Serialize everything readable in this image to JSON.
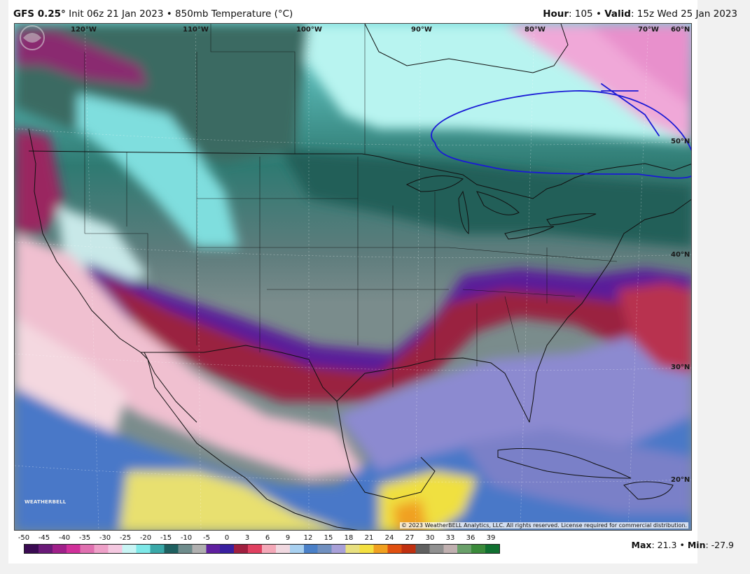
{
  "header": {
    "model": "GFS 0.25",
    "model_deg": "°",
    "init": "Init 06z 21 Jan 2023",
    "sep": "•",
    "field": "850mb Temperature (°C)",
    "hour_label": "Hour",
    "hour_value": ": 105",
    "valid_label": "Valid",
    "valid_value": ": 15z Wed 25 Jan 2023"
  },
  "map": {
    "lon_labels": [
      "120°W",
      "110°W",
      "100°W",
      "90°W",
      "80°W",
      "70°W",
      "60°N"
    ],
    "lat_labels": [
      "50°N",
      "40°N",
      "30°N",
      "20°N"
    ],
    "copyright": "© 2023 WeatherBELL Analytics, LLC. All rights reserved. License required for commercial distribution.",
    "logo_text": "WEATHERBELL",
    "annotation_color": "#1a1ad6"
  },
  "colorbar": {
    "ticks": [
      "-50",
      "-45",
      "-40",
      "-35",
      "-30",
      "-25",
      "-20",
      "-15",
      "-10",
      "-5",
      "0",
      "3",
      "6",
      "9",
      "12",
      "15",
      "18",
      "21",
      "24",
      "27",
      "30",
      "33",
      "36",
      "39"
    ],
    "colors": [
      "#3a0a52",
      "#6a1a78",
      "#a0208a",
      "#d0309a",
      "#e070b0",
      "#eea0c8",
      "#f4c8e0",
      "#c8f4f4",
      "#7ee8e8",
      "#3aa8a8",
      "#1e6060",
      "#6e8c8c",
      "#b0b0b0",
      "#6020a0",
      "#3a20a0",
      "#a02040",
      "#e04060",
      "#f4a8b8",
      "#f0d8e0",
      "#a8d0f0",
      "#4a80c8",
      "#7090c0",
      "#a8a0d8",
      "#e8e080",
      "#f4e040",
      "#f0a020",
      "#e05010",
      "#c03010",
      "#606060",
      "#909090",
      "#c0b0b0",
      "#6aa06a",
      "#3a8a3a",
      "#107030"
    ]
  },
  "stats": {
    "max_label": "Max",
    "max_value": ": 21.3",
    "sep": "•",
    "min_label": "Min",
    "min_value": ": -27.9"
  }
}
